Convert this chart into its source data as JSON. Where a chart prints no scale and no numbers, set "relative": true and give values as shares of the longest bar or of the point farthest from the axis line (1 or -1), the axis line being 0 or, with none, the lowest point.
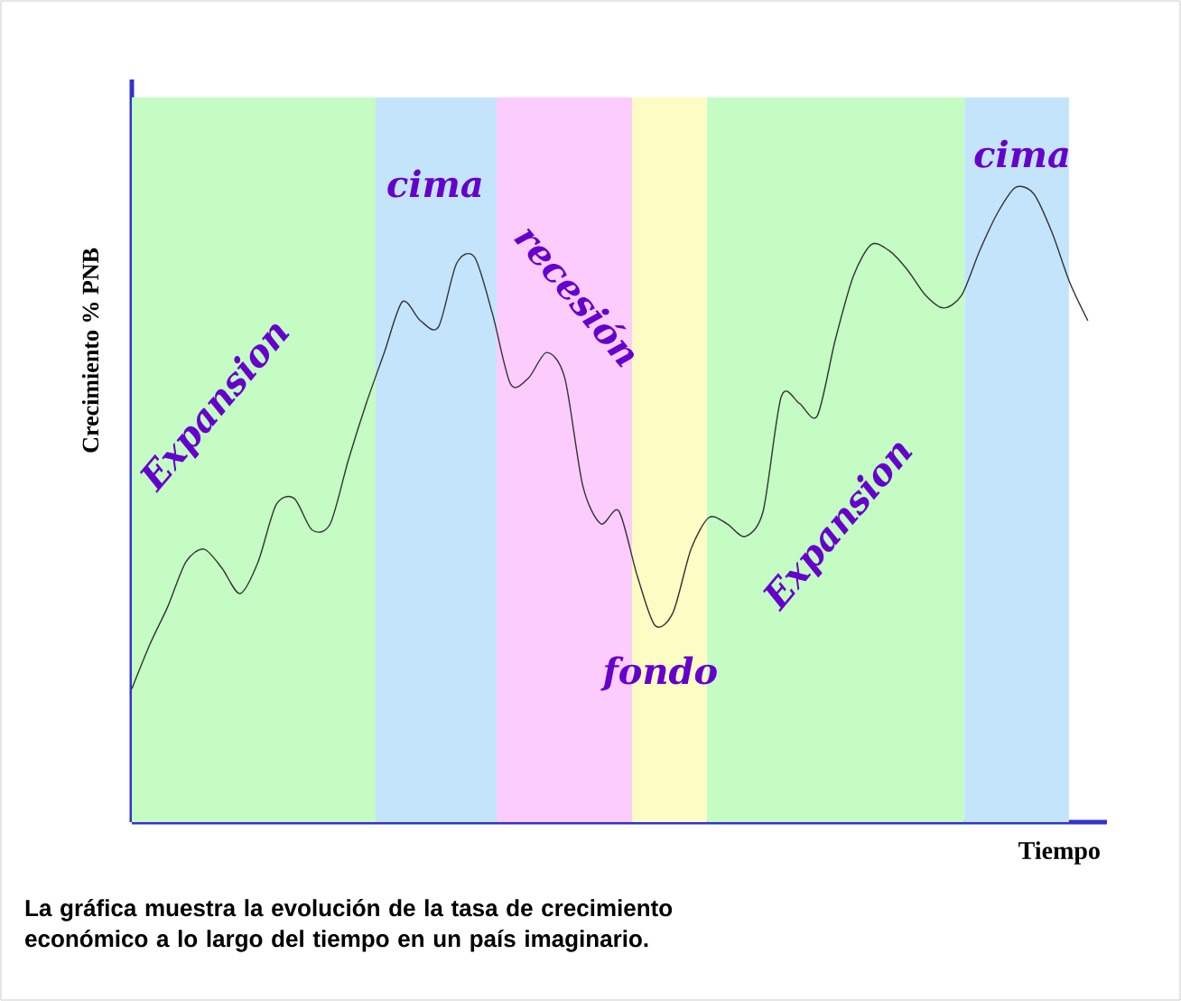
{
  "chart_data": {
    "type": "line",
    "relative": true,
    "marker": "none",
    "xlabel": "Tiempo",
    "ylabel": "Crecimiento % PNB",
    "categories": [
      null,
      null,
      null,
      null,
      null,
      null,
      null,
      null,
      null,
      null,
      null,
      null,
      null,
      null,
      null,
      null,
      null,
      null,
      null,
      null,
      null,
      null,
      null,
      null,
      null,
      null,
      null,
      null,
      null,
      null,
      null,
      null,
      null,
      null,
      null,
      null,
      null,
      null,
      null,
      null,
      null,
      null,
      null,
      null,
      null,
      null,
      null,
      null,
      null,
      null,
      null,
      null,
      null,
      null
    ],
    "series": [
      {
        "color": "#333333",
        "values": [
          0.21,
          0.28,
          0.34,
          0.41,
          0.43,
          0.4,
          0.36,
          0.41,
          0.5,
          0.51,
          0.46,
          0.47,
          0.57,
          0.66,
          0.74,
          0.82,
          0.79,
          0.78,
          0.88,
          0.89,
          0.8,
          0.69,
          0.7,
          0.74,
          0.7,
          0.53,
          0.47,
          0.49,
          0.39,
          0.31,
          0.33,
          0.43,
          0.48,
          0.47,
          0.45,
          0.49,
          0.67,
          0.66,
          0.64,
          0.76,
          0.86,
          0.91,
          0.9,
          0.87,
          0.83,
          0.81,
          0.83,
          0.9,
          0.96,
          1.0,
          0.99,
          0.93,
          0.85,
          0.79
        ]
      }
    ],
    "annotations": [
      "Expansion",
      "cima",
      "recesión",
      "fondo",
      "Expansion",
      "cima",
      "La gráfica muestra la evolución de la tasa de crecimiento económico a lo largo del tiempo en un país imaginario."
    ]
  }
}
